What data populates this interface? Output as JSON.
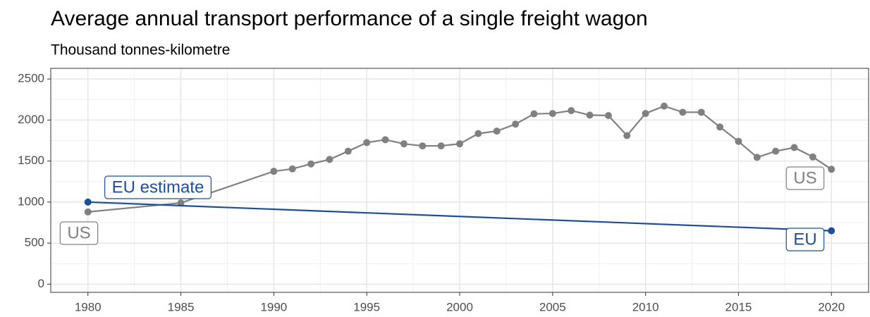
{
  "chart_data": {
    "type": "line",
    "title": "Average annual transport performance of a single freight wagon",
    "subtitle": "Thousand tonnes-kilometre",
    "annotations": [
      "EU estimate"
    ],
    "series": [
      {
        "name": "US",
        "color": "#808080",
        "x": [
          1980,
          1985,
          1990,
          1991,
          1992,
          1993,
          1994,
          1995,
          1996,
          1997,
          1998,
          1999,
          2000,
          2001,
          2002,
          2003,
          2004,
          2005,
          2006,
          2007,
          2008,
          2009,
          2010,
          2011,
          2012,
          2013,
          2014,
          2015,
          2016,
          2017,
          2018,
          2019,
          2020
        ],
        "values": [
          880,
          990,
          1375,
          1405,
          1465,
          1520,
          1620,
          1725,
          1760,
          1710,
          1685,
          1685,
          1710,
          1835,
          1865,
          1950,
          2075,
          2080,
          2115,
          2060,
          2055,
          1810,
          2080,
          2170,
          2095,
          2095,
          1915,
          1740,
          1545,
          1620,
          1665,
          1550,
          1400
        ]
      },
      {
        "name": "EU",
        "color": "#1f4e99",
        "x": [
          1980,
          2020
        ],
        "values": [
          1000,
          650
        ]
      }
    ],
    "xlim": [
      1978,
      2022
    ],
    "xticks": [
      1980,
      1985,
      1990,
      1995,
      2000,
      2005,
      2010,
      2015,
      2020
    ],
    "ylim": [
      -100,
      2630
    ],
    "yticks": [
      0,
      500,
      1000,
      1500,
      2000,
      2500
    ],
    "grid": true
  }
}
